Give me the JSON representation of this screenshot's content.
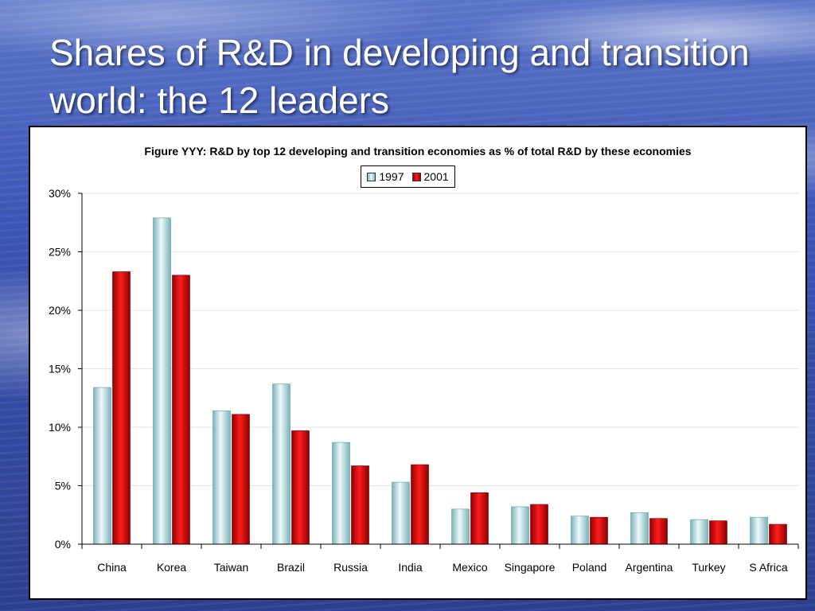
{
  "slide": {
    "title": "Shares of R&D in developing and transition world: the 12 leaders"
  },
  "colors": {
    "series_1997": "#a9dadc",
    "series_2001": "#cc0000"
  },
  "chart_data": {
    "type": "bar",
    "title": "Figure YYY: R&D by top 12 developing and transition economies as % of total R&D by these economies",
    "xlabel": "",
    "ylabel": "",
    "categories": [
      "China",
      "Korea",
      "Taiwan",
      "Brazil",
      "Russia",
      "India",
      "Mexico",
      "Singapore",
      "Poland",
      "Argentina",
      "Turkey",
      "S Africa"
    ],
    "series": [
      {
        "name": "1997",
        "values": [
          13.4,
          27.9,
          11.4,
          13.7,
          8.7,
          5.3,
          3.0,
          3.2,
          2.4,
          2.7,
          2.1,
          2.3
        ]
      },
      {
        "name": "2001",
        "values": [
          23.3,
          23.0,
          11.1,
          9.7,
          6.7,
          6.8,
          4.4,
          3.4,
          2.3,
          2.2,
          2.0,
          1.7
        ]
      }
    ],
    "ylim": [
      0,
      30
    ],
    "yticks": [
      "0%",
      "5%",
      "10%",
      "15%",
      "20%",
      "25%",
      "30%"
    ],
    "ytick_values": [
      0,
      5,
      10,
      15,
      20,
      25,
      30
    ],
    "legend_position": "top-center",
    "grid": true
  }
}
